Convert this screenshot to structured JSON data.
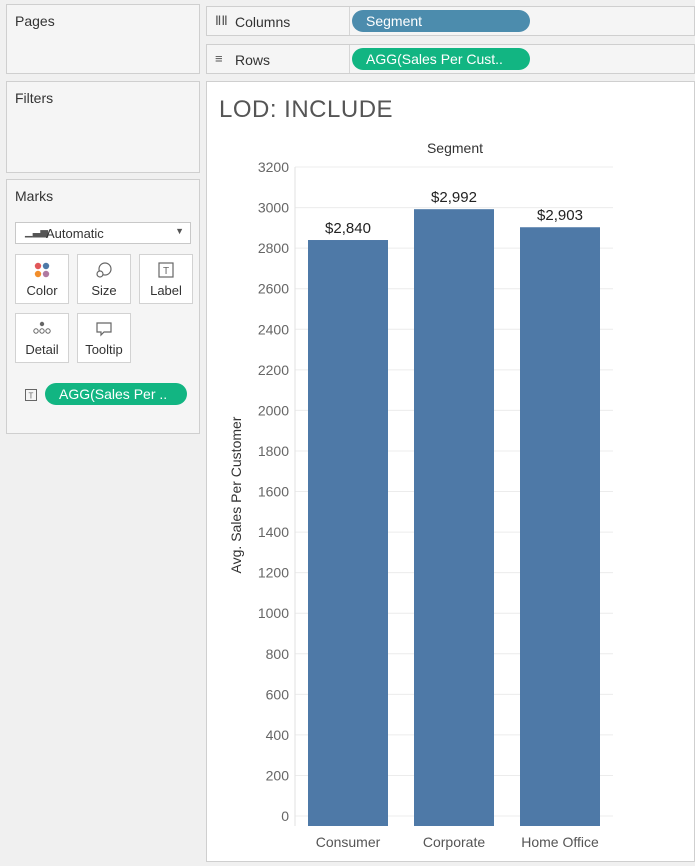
{
  "pages": {
    "title": "Pages"
  },
  "filters": {
    "title": "Filters"
  },
  "marks": {
    "title": "Marks",
    "mark_type": "Automatic",
    "buttons": [
      "Color",
      "Size",
      "Label",
      "Detail",
      "Tooltip"
    ],
    "label_pill": "AGG(Sales Per .."
  },
  "columns": {
    "label": "Columns",
    "pill": "Segment",
    "pill_color": "#4c8cad"
  },
  "rows": {
    "label": "Rows",
    "pill": "AGG(Sales Per Cust..",
    "pill_color": "#12b582"
  },
  "sheet": {
    "title": "LOD: INCLUDE"
  },
  "colors": {
    "bar": "#4e79a7",
    "dimension_pill": "#4c8cad",
    "measure_pill": "#12b582"
  },
  "chart_data": {
    "type": "bar",
    "title": "LOD: INCLUDE",
    "header": "Segment",
    "categories": [
      "Consumer",
      "Corporate",
      "Home Office"
    ],
    "values": [
      2840,
      2992,
      2903
    ],
    "data_labels": [
      "$2,840",
      "$2,992",
      "$2,903"
    ],
    "ylabel": "Avg. Sales Per Customer",
    "xlabel": "",
    "ylim": [
      0,
      3200
    ],
    "yticks": [
      0,
      200,
      400,
      600,
      800,
      1000,
      1200,
      1400,
      1600,
      1800,
      2000,
      2200,
      2400,
      2600,
      2800,
      3000,
      3200
    ],
    "grid": true,
    "legend": "none"
  }
}
